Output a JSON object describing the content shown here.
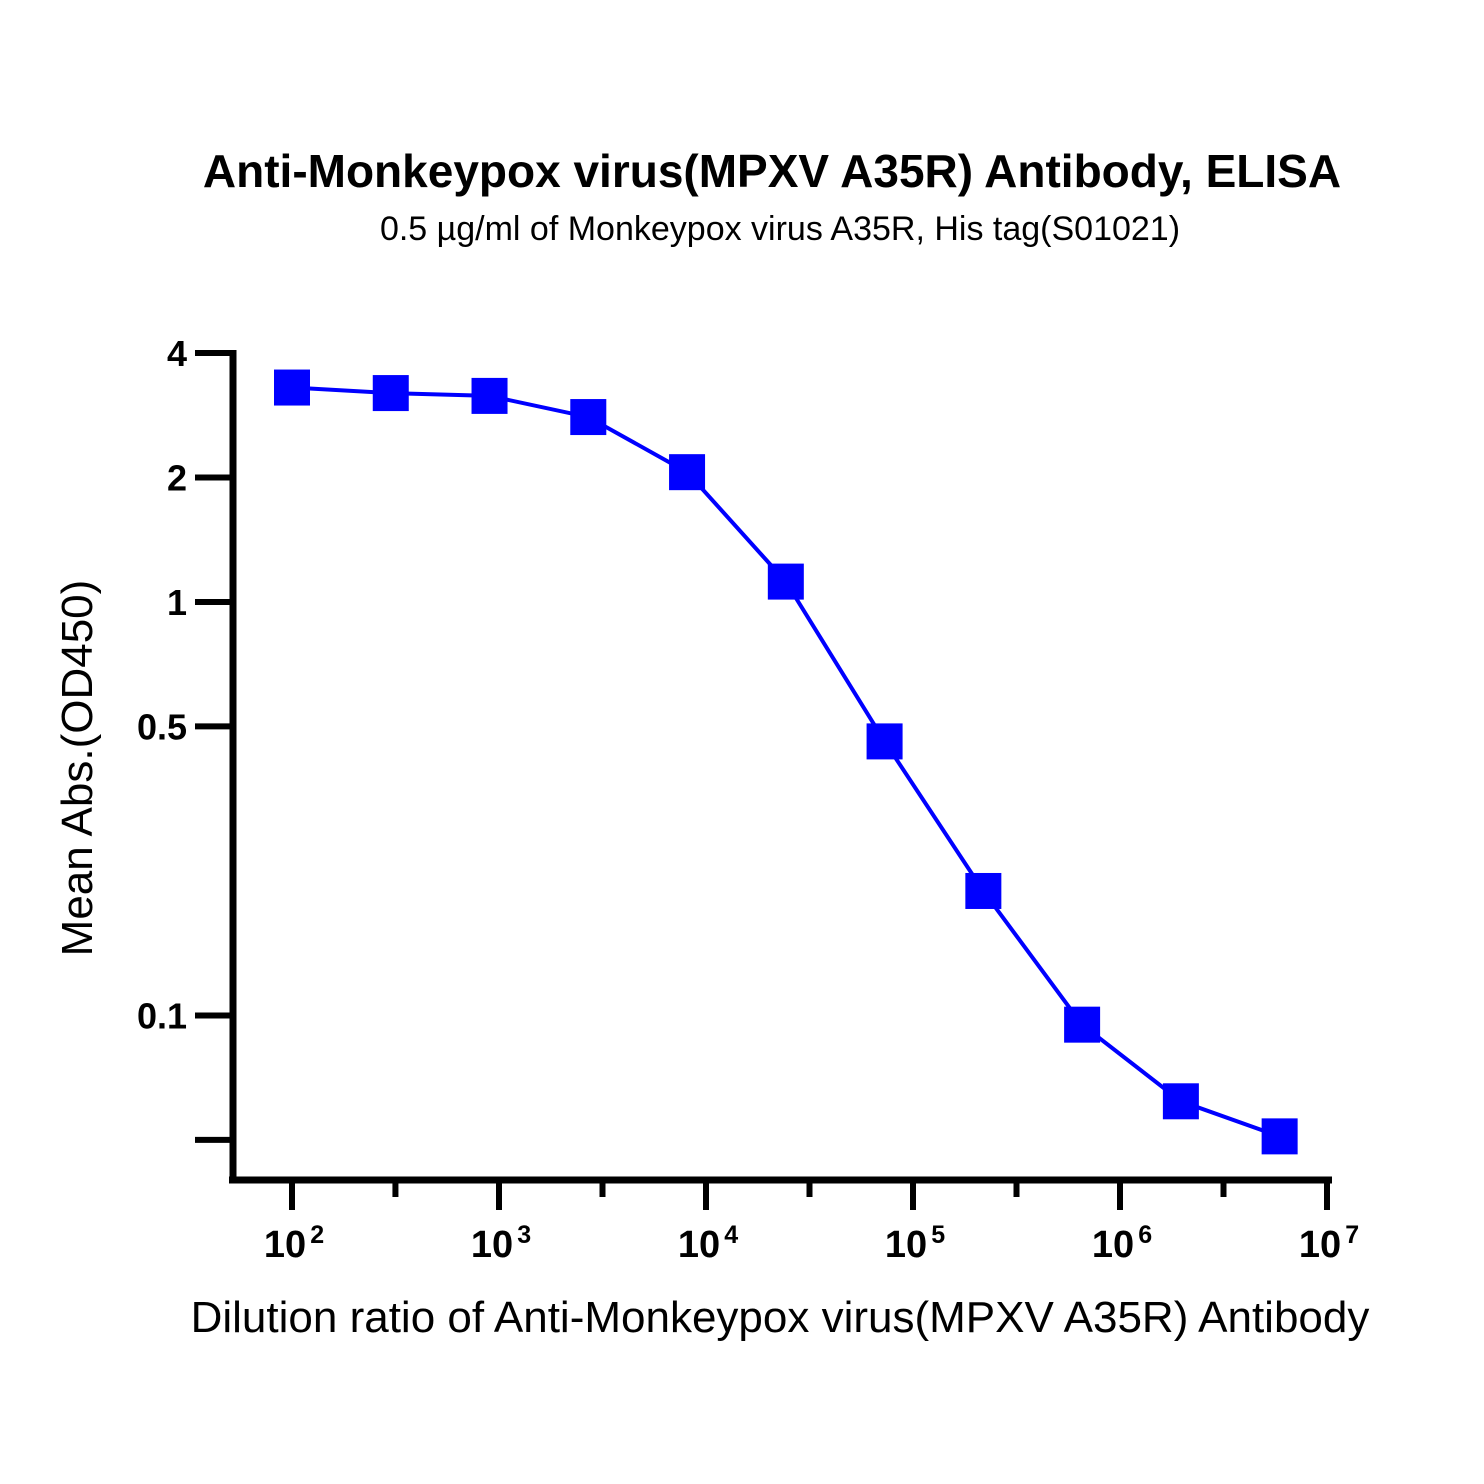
{
  "chart_data": {
    "type": "line",
    "title": "Anti-Monkeypox virus(MPXV A35R) Antibody, ELISA",
    "subtitle": "0.5 µg/ml of Monkeypox virus A35R, His tag(S01021)",
    "xlabel": "Dilution ratio of Anti-Monkeypox virus(MPXV A35R) Antibody",
    "ylabel": "Mean Abs.(OD450)",
    "x_scale": "log",
    "y_scale": "log",
    "xlim": [
      100,
      10000000
    ],
    "ylim": [
      0.04,
      4
    ],
    "x_ticks": [
      {
        "value": 100,
        "base": "10",
        "exp": "2"
      },
      {
        "value": 1000,
        "base": "10",
        "exp": "3"
      },
      {
        "value": 10000,
        "base": "10",
        "exp": "4"
      },
      {
        "value": 100000,
        "base": "10",
        "exp": "5"
      },
      {
        "value": 1000000,
        "base": "10",
        "exp": "6"
      },
      {
        "value": 10000000,
        "base": "10",
        "exp": "7"
      }
    ],
    "x_minor_ticks": [
      316,
      3162,
      31623,
      316228,
      3162278
    ],
    "y_ticks": [
      {
        "value": 4,
        "label": "4"
      },
      {
        "value": 2,
        "label": "2"
      },
      {
        "value": 1,
        "label": "1"
      },
      {
        "value": 0.5,
        "label": "0.5"
      },
      {
        "value": 0.1,
        "label": "0.1"
      },
      {
        "value": 0.05,
        "label": ""
      }
    ],
    "grid": false,
    "series": [
      {
        "color": "#0000ff",
        "marker": "square",
        "x": [
          100,
          300,
          900,
          2700,
          8100,
          24300,
          72900,
          218700,
          656100,
          1968300,
          5904900
        ],
        "y": [
          3.3,
          3.2,
          3.15,
          2.8,
          2.06,
          1.12,
          0.46,
          0.2,
          0.095,
          0.062,
          0.051
        ]
      }
    ]
  }
}
